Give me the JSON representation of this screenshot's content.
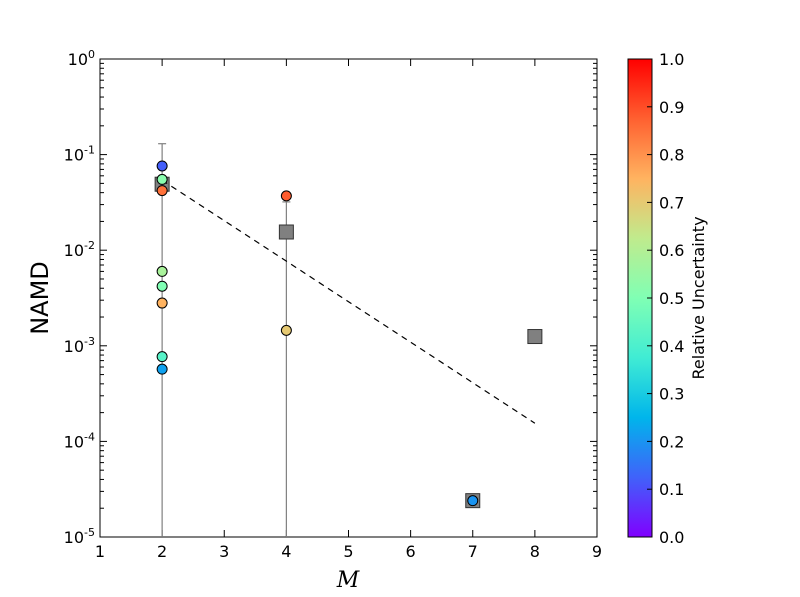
{
  "chart_data": {
    "type": "scatter",
    "title": "",
    "xlabel": "M",
    "ylabel": "NAMD",
    "xlim": [
      1,
      9
    ],
    "ylim": [
      1e-05,
      1
    ],
    "yscale": "log",
    "x_ticks": [
      "1",
      "2",
      "3",
      "4",
      "5",
      "6",
      "7",
      "8",
      "9"
    ],
    "y_ticks": [
      {
        "base": "10",
        "exp": "0",
        "value": 1
      },
      {
        "base": "10",
        "exp": "-1",
        "value": 0.1
      },
      {
        "base": "10",
        "exp": "-2",
        "value": 0.01
      },
      {
        "base": "10",
        "exp": "-3",
        "value": 0.001
      },
      {
        "base": "10",
        "exp": "-4",
        "value": 0.0001
      },
      {
        "base": "10",
        "exp": "-5",
        "value": 1e-05
      }
    ],
    "points": [
      {
        "x": 2,
        "y": 0.076,
        "uncertainty": 0.12
      },
      {
        "x": 2,
        "y": 0.055,
        "uncertainty": 0.52
      },
      {
        "x": 2,
        "y": 0.042,
        "uncertainty": 0.85
      },
      {
        "x": 2,
        "y": 0.006,
        "uncertainty": 0.58
      },
      {
        "x": 2,
        "y": 0.0042,
        "uncertainty": 0.5
      },
      {
        "x": 2,
        "y": 0.0028,
        "uncertainty": 0.75
      },
      {
        "x": 2,
        "y": 0.00077,
        "uncertainty": 0.42
      },
      {
        "x": 2,
        "y": 0.00057,
        "uncertainty": 0.22
      },
      {
        "x": 4,
        "y": 0.037,
        "uncertainty": 0.88
      },
      {
        "x": 4,
        "y": 0.00145,
        "uncertainty": 0.7
      },
      {
        "x": 7,
        "y": 2.4e-05,
        "uncertainty": 0.2
      }
    ],
    "means": [
      {
        "x": 2,
        "y": 0.049,
        "err_low": 1e-05,
        "err_high": 0.13
      },
      {
        "x": 4,
        "y": 0.0155,
        "err_low": 1e-05,
        "err_high": 0.032
      },
      {
        "x": 7,
        "y": 2.4e-05
      },
      {
        "x": 8,
        "y": 0.00125
      }
    ],
    "fit_line": {
      "x": [
        2,
        8
      ],
      "y": [
        0.054,
        0.000155
      ]
    },
    "colorbar": {
      "label": "Relative Uncertainty",
      "range": [
        0,
        1
      ],
      "ticks": [
        "0.0",
        "0.1",
        "0.2",
        "0.3",
        "0.4",
        "0.5",
        "0.6",
        "0.7",
        "0.8",
        "0.9",
        "1.0"
      ],
      "colormap": "rainbow"
    },
    "grid": false,
    "legend": "none"
  }
}
